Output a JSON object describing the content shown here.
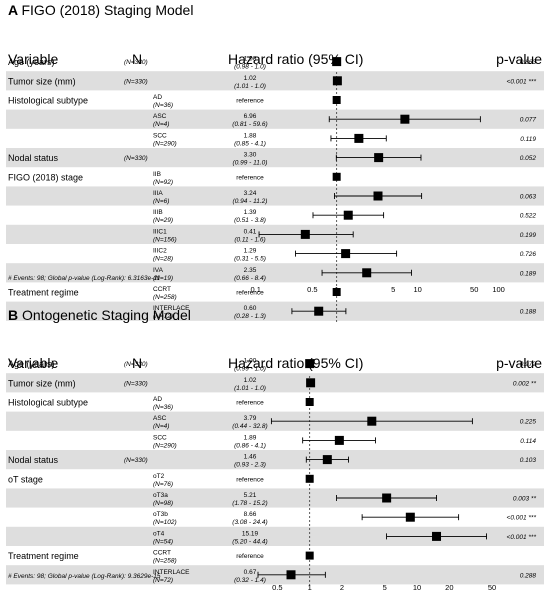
{
  "chart_data": [
    {
      "type": "forest",
      "panel_label": "A",
      "title": "FIGO (2018) Staging Model",
      "headers": {
        "variable": "Variable",
        "n": "N",
        "hr": "Hazard ratio (95% CI)",
        "p": "p-value"
      },
      "x_scale": "log",
      "x_ticks": [
        "0.1",
        "0.5",
        "1",
        "5",
        "10",
        "50",
        "100"
      ],
      "footnote": "# Events: 98; Global p-value (Log-Rank): 6.3163e-11",
      "rows": [
        {
          "variable": "Age (years)",
          "level": "",
          "n": "(N=330)",
          "hr": "1.00",
          "ci": "(0.98 - 1.0)",
          "est": 1.0,
          "lo": 0.98,
          "hi": 1.02,
          "p": "0.863",
          "shade": false
        },
        {
          "variable": "Tumor size (mm)",
          "level": "",
          "n": "(N=330)",
          "hr": "1.02",
          "ci": "(1.01 - 1.0)",
          "est": 1.02,
          "lo": 1.01,
          "hi": 1.03,
          "p": "<0.001 ***",
          "shade": true
        },
        {
          "variable": "Histological subtype",
          "level": "AD",
          "n": "(N=36)",
          "hr": "reference",
          "ci": "",
          "est": 1,
          "ref": true,
          "p": "",
          "shade": false
        },
        {
          "variable": "",
          "level": "ASC",
          "n": "(N=4)",
          "hr": "6.96",
          "ci": "(0.81 - 59.6)",
          "est": 6.96,
          "lo": 0.81,
          "hi": 59.6,
          "p": "0.077",
          "shade": true
        },
        {
          "variable": "",
          "level": "SCC",
          "n": "(N=290)",
          "hr": "1.88",
          "ci": "(0.85 - 4.1)",
          "est": 1.88,
          "lo": 0.85,
          "hi": 4.1,
          "p": "0.119",
          "shade": false
        },
        {
          "variable": "Nodal status",
          "level": "",
          "n": "(N=330)",
          "hr": "3.30",
          "ci": "(0.99 - 11.0)",
          "est": 3.3,
          "lo": 0.99,
          "hi": 11.0,
          "p": "0.052",
          "shade": true
        },
        {
          "variable": "FIGO (2018) stage",
          "level": "IIB",
          "n": "(N=92)",
          "hr": "reference",
          "ci": "",
          "est": 1,
          "ref": true,
          "p": "",
          "shade": false
        },
        {
          "variable": "",
          "level": "IIIA",
          "n": "(N=6)",
          "hr": "3.24",
          "ci": "(0.94 - 11.2)",
          "est": 3.24,
          "lo": 0.94,
          "hi": 11.2,
          "p": "0.063",
          "shade": true
        },
        {
          "variable": "",
          "level": "IIIB",
          "n": "(N=29)",
          "hr": "1.39",
          "ci": "(0.51 - 3.8)",
          "est": 1.39,
          "lo": 0.51,
          "hi": 3.8,
          "p": "0.522",
          "shade": false
        },
        {
          "variable": "",
          "level": "IIIC1",
          "n": "(N=156)",
          "hr": "0.41",
          "ci": "(0.11 - 1.6)",
          "est": 0.41,
          "lo": 0.11,
          "hi": 1.6,
          "p": "0.199",
          "shade": true
        },
        {
          "variable": "",
          "level": "IIIC2",
          "n": "(N=28)",
          "hr": "1.29",
          "ci": "(0.31 - 5.5)",
          "est": 1.29,
          "lo": 0.31,
          "hi": 5.5,
          "p": "0.726",
          "shade": false
        },
        {
          "variable": "",
          "level": "IVA",
          "n": "(N=19)",
          "hr": "2.35",
          "ci": "(0.66 - 8.4)",
          "est": 2.35,
          "lo": 0.66,
          "hi": 8.4,
          "p": "0.189",
          "shade": true
        },
        {
          "variable": "Treatment regime",
          "level": "CCRT",
          "n": "(N=258)",
          "hr": "reference",
          "ci": "",
          "est": 1,
          "ref": true,
          "p": "",
          "shade": false
        },
        {
          "variable": "",
          "level": "INTERLACE",
          "n": "(N=72)",
          "hr": "0.60",
          "ci": "(0.28 - 1.3)",
          "est": 0.6,
          "lo": 0.28,
          "hi": 1.3,
          "p": "0.188",
          "shade": true
        }
      ]
    },
    {
      "type": "forest",
      "panel_label": "B",
      "title": "Ontogenetic Staging Model",
      "headers": {
        "variable": "Variable",
        "n": "N",
        "hr": "Hazard ratio (95% CI)",
        "p": "p-value"
      },
      "x_scale": "log",
      "x_ticks": [
        "0.5",
        "1",
        "2",
        "5",
        "10",
        "20",
        "50"
      ],
      "footnote": "# Events: 98; Global p-value (Log-Rank): 9.3629e-15",
      "rows": [
        {
          "variable": "Age (years)",
          "level": "",
          "n": "(N=330)",
          "hr": "1.00",
          "ci": "(0.99 - 1.0)",
          "est": 1.0,
          "lo": 0.99,
          "hi": 1.01,
          "p": "0.972",
          "shade": false
        },
        {
          "variable": "Tumor size (mm)",
          "level": "",
          "n": "(N=330)",
          "hr": "1.02",
          "ci": "(1.01 - 1.0)",
          "est": 1.02,
          "lo": 1.01,
          "hi": 1.03,
          "p": "0.002 **",
          "shade": true
        },
        {
          "variable": "Histological subtype",
          "level": "AD",
          "n": "(N=36)",
          "hr": "reference",
          "ci": "",
          "est": 1,
          "ref": true,
          "p": "",
          "shade": false
        },
        {
          "variable": "",
          "level": "ASC",
          "n": "(N=4)",
          "hr": "3.79",
          "ci": "(0.44 - 32.8)",
          "est": 3.79,
          "lo": 0.44,
          "hi": 32.8,
          "p": "0.225",
          "shade": true
        },
        {
          "variable": "",
          "level": "SCC",
          "n": "(N=290)",
          "hr": "1.89",
          "ci": "(0.86 - 4.1)",
          "est": 1.89,
          "lo": 0.86,
          "hi": 4.1,
          "p": "0.114",
          "shade": false
        },
        {
          "variable": "Nodal status",
          "level": "",
          "n": "(N=330)",
          "hr": "1.46",
          "ci": "(0.93 - 2.3)",
          "est": 1.46,
          "lo": 0.93,
          "hi": 2.3,
          "p": "0.103",
          "shade": true
        },
        {
          "variable": "oT stage",
          "level": "oT2",
          "n": "(N=76)",
          "hr": "reference",
          "ci": "",
          "est": 1,
          "ref": true,
          "p": "",
          "shade": false
        },
        {
          "variable": "",
          "level": "oT3a",
          "n": "(N=98)",
          "hr": "5.21",
          "ci": "(1.78 - 15.2)",
          "est": 5.21,
          "lo": 1.78,
          "hi": 15.2,
          "p": "0.003 **",
          "shade": true
        },
        {
          "variable": "",
          "level": "oT3b",
          "n": "(N=102)",
          "hr": "8.66",
          "ci": "(3.08 - 24.4)",
          "est": 8.66,
          "lo": 3.08,
          "hi": 24.4,
          "p": "<0.001 ***",
          "shade": false
        },
        {
          "variable": "",
          "level": "oT4",
          "n": "(N=54)",
          "hr": "15.19",
          "ci": "(5.20 - 44.4)",
          "est": 15.19,
          "lo": 5.2,
          "hi": 44.4,
          "p": "<0.001 ***",
          "shade": true
        },
        {
          "variable": "Treatment regime",
          "level": "CCRT",
          "n": "(N=258)",
          "hr": "reference",
          "ci": "",
          "est": 1,
          "ref": true,
          "p": "",
          "shade": false
        },
        {
          "variable": "",
          "level": "INTERLACE",
          "n": "(N=72)",
          "hr": "0.67",
          "ci": "(0.32 - 1.4)",
          "est": 0.67,
          "lo": 0.32,
          "hi": 1.4,
          "p": "0.288",
          "shade": true
        }
      ]
    }
  ]
}
